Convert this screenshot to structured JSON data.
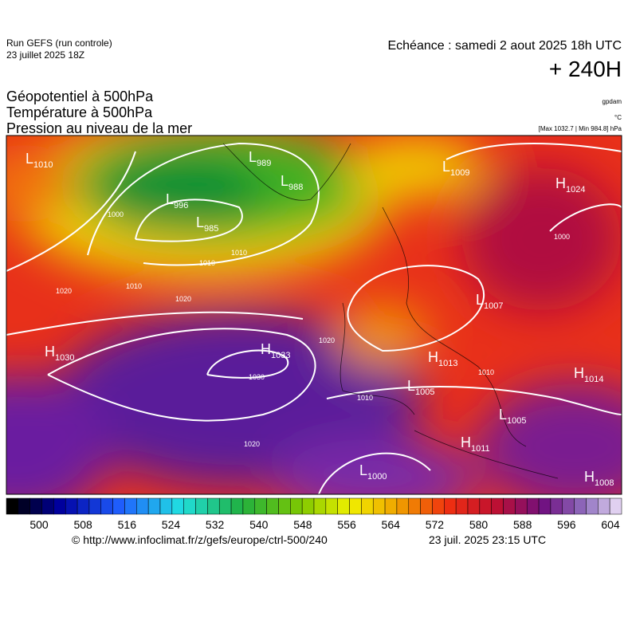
{
  "header": {
    "run": "Run GEFS (run controle)",
    "run_date": "23 juillet 2025 18Z",
    "echeance": "Echéance : samedi 2 aout 2025 18h UTC",
    "lead": "+ 240H",
    "params": [
      "Géopotentiel à 500hPa",
      "Température à 500hPa",
      "Pression au niveau de la mer"
    ],
    "units": [
      "gpdam",
      "°C",
      "[Max 1032.7 | Min 984.8] hPa"
    ]
  },
  "map": {
    "centers": [
      {
        "letter": "L",
        "value": 1010
      },
      {
        "letter": "L",
        "value": 989
      },
      {
        "letter": "L",
        "value": 988
      },
      {
        "letter": "L",
        "value": 996
      },
      {
        "letter": "L",
        "value": 985
      },
      {
        "letter": "L",
        "value": 1009
      },
      {
        "letter": "H",
        "value": 1024
      },
      {
        "letter": "L",
        "value": 1007
      },
      {
        "letter": "H",
        "value": 1033
      },
      {
        "letter": "H",
        "value": 1030
      },
      {
        "letter": "H",
        "value": 1013
      },
      {
        "letter": "L",
        "value": 1005
      },
      {
        "letter": "H",
        "value": 1014
      },
      {
        "letter": "L",
        "value": 1005
      },
      {
        "letter": "H",
        "value": 1011
      },
      {
        "letter": "L",
        "value": 1000
      },
      {
        "letter": "H",
        "value": 1008
      }
    ],
    "isobar_labels": [
      1000,
      1010,
      1020,
      1030,
      1020,
      1010,
      1020,
      1010,
      1010,
      1020,
      1010,
      1000
    ]
  },
  "colorbar": {
    "ticks": [
      500,
      508,
      516,
      524,
      532,
      540,
      548,
      556,
      564,
      572,
      580,
      588,
      596,
      604
    ]
  },
  "footer": {
    "url": "© http://www.infoclimat.fr/z/gefs/europe/ctrl-500/240",
    "issued": "23 juil. 2025 23:15 UTC"
  }
}
